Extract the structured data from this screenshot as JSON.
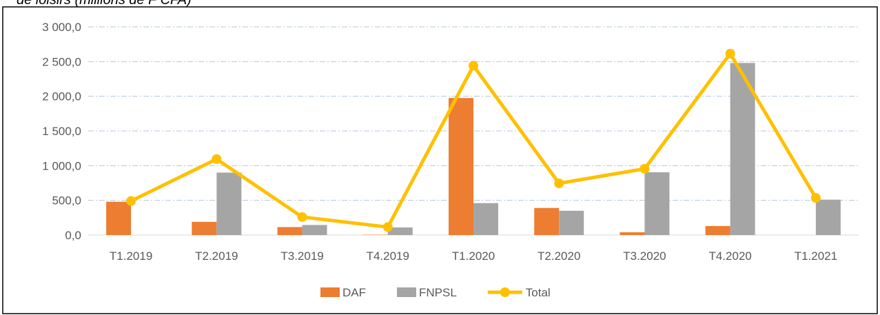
{
  "chart_data": {
    "type": "bar",
    "title": "de loisirs (millions de F CFA)",
    "categories": [
      "T1.2019",
      "T2.2019",
      "T3.2019",
      "T4.2019",
      "T1.2020",
      "T2.2020",
      "T3.2020",
      "T4.2020",
      "T1.2021"
    ],
    "series": [
      {
        "name": "DAF",
        "color": "#ED7D31",
        "type": "bar",
        "values": [
          480,
          190,
          115,
          5,
          1975,
          390,
          40,
          130,
          0
        ]
      },
      {
        "name": "FNPSL",
        "color": "#A5A5A5",
        "type": "bar",
        "values": [
          0,
          900,
          145,
          110,
          460,
          350,
          905,
          2480,
          510
        ]
      },
      {
        "name": "Total",
        "color": "#FFC000",
        "type": "line",
        "values": [
          490,
          1095,
          260,
          115,
          2440,
          745,
          955,
          2615,
          535
        ]
      }
    ],
    "ylim": [
      0,
      3000
    ],
    "yticks": [
      {
        "value": 0,
        "label": "0,0"
      },
      {
        "value": 500,
        "label": "500,0"
      },
      {
        "value": 1000,
        "label": "1 000,0"
      },
      {
        "value": 1500,
        "label": "1 500,0"
      },
      {
        "value": 2000,
        "label": "2 000,0"
      },
      {
        "value": 2500,
        "label": "2 500,0"
      },
      {
        "value": 3000,
        "label": "3 000,0"
      }
    ],
    "grid": true,
    "legend": "bottom"
  }
}
